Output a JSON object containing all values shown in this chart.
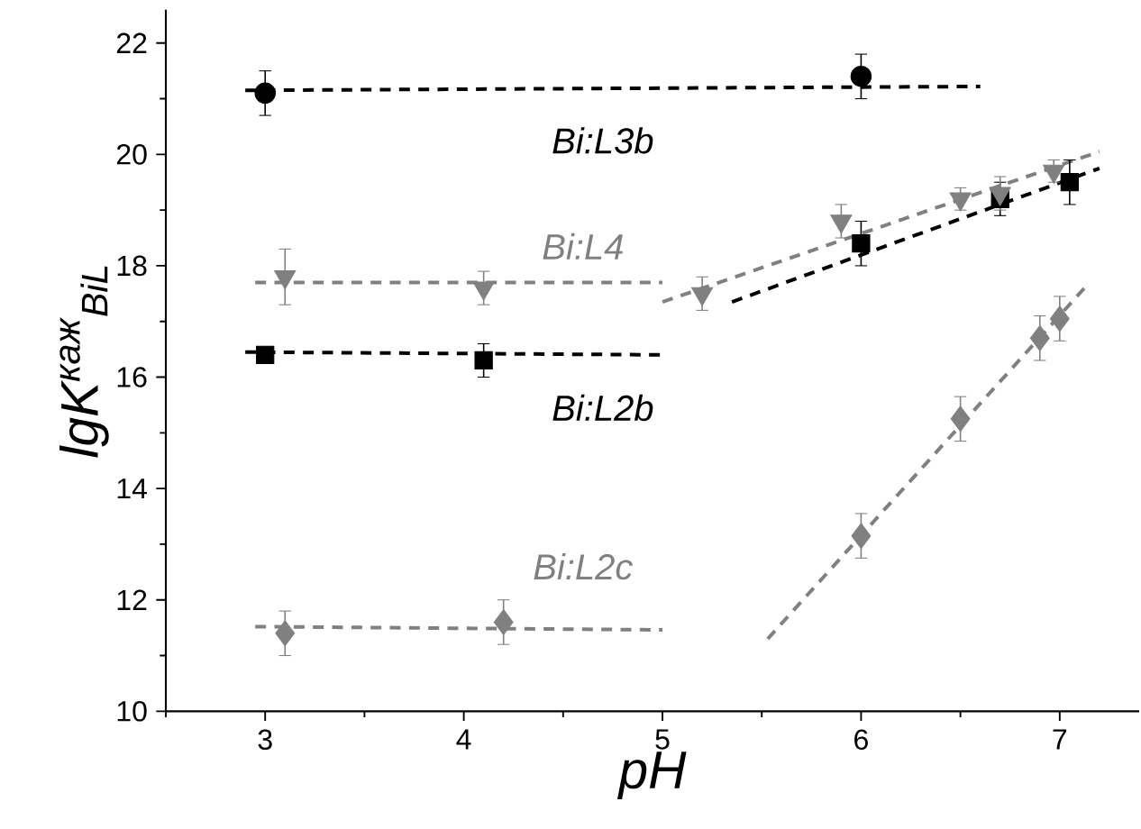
{
  "chart_data": {
    "type": "scatter",
    "xlabel": "pH",
    "ylabel": "lgK$^{каж}$$_{BiL}$",
    "xlim": [
      2.5,
      7.4
    ],
    "ylim": [
      10,
      22.6
    ],
    "xticks": [
      {
        "value": 2.5,
        "label": null
      },
      3,
      {
        "value": 3.5,
        "label": null
      },
      4,
      {
        "value": 4.5,
        "label": null
      },
      5,
      {
        "value": 5.5,
        "label": null
      },
      6,
      {
        "value": 6.5,
        "label": null
      },
      7
    ],
    "yticks": [
      10,
      {
        "value": 11,
        "label": null
      },
      12,
      {
        "value": 13,
        "label": null
      },
      14,
      {
        "value": 15,
        "label": null
      },
      16,
      {
        "value": 17,
        "label": null
      },
      18,
      {
        "value": 19,
        "label": null
      },
      20,
      {
        "value": 21,
        "label": null
      },
      22
    ],
    "series": [
      {
        "marker": "circle",
        "color": "#000000",
        "x": [
          3,
          6
        ],
        "values": [
          21.1,
          21.4
        ],
        "errors": [
          0.4,
          0.4
        ]
      },
      {
        "marker": "triangle",
        "color": "#808080",
        "x": [
          3.1,
          4.1,
          5.2,
          5.9,
          6.5,
          6.7,
          6.97
        ],
        "values": [
          17.8,
          17.6,
          17.5,
          18.8,
          19.2,
          19.3,
          19.7
        ],
        "errors": [
          0.5,
          0.3,
          0.3,
          0.3,
          0.2,
          0.3,
          0.2
        ]
      },
      {
        "marker": "square",
        "color": "#000000",
        "x": [
          3,
          4.1,
          6,
          6.7,
          7.05
        ],
        "values": [
          16.4,
          16.3,
          18.4,
          19.2,
          19.5
        ],
        "errors": [
          0.1,
          0.3,
          0.4,
          0.3,
          0.4
        ]
      },
      {
        "marker": "diamond",
        "color": "#808080",
        "x": [
          3.1,
          4.2,
          6,
          6.5,
          6.9,
          7.0
        ],
        "values": [
          11.4,
          11.6,
          13.15,
          15.25,
          16.7,
          17.05
        ],
        "errors": [
          0.4,
          0.4,
          0.4,
          0.4,
          0.4,
          0.4
        ]
      },
      {
        "type": "line",
        "line_style": "dashed",
        "color": "#000000",
        "x": [
          2.9,
          6.6
        ],
        "values": [
          21.15,
          21.22
        ]
      },
      {
        "type": "line",
        "line_style": "dashed",
        "color": "#808080",
        "x": [
          2.95,
          5.0
        ],
        "values": [
          17.7,
          17.7
        ]
      },
      {
        "type": "line",
        "line_style": "dashed",
        "color": "#808080",
        "x": [
          5.0,
          7.2
        ],
        "values": [
          17.35,
          20.05
        ]
      },
      {
        "type": "line",
        "line_style": "dashed",
        "color": "#000000",
        "x": [
          2.9,
          5.0
        ],
        "values": [
          16.45,
          16.4
        ]
      },
      {
        "type": "line",
        "line_style": "dashed",
        "color": "#000000",
        "x": [
          5.35,
          7.2
        ],
        "values": [
          17.35,
          19.75
        ]
      },
      {
        "type": "line",
        "line_style": "dashed",
        "color": "#808080",
        "x": [
          2.95,
          5.0
        ],
        "values": [
          11.52,
          11.46
        ]
      },
      {
        "type": "line",
        "line_style": "dashed",
        "color": "#808080",
        "x": [
          5.53,
          7.15
        ],
        "values": [
          11.3,
          17.7
        ]
      }
    ],
    "annotations": [
      "Bi:L3b",
      "Bi:L4",
      "Bi:L2b",
      "Bi:L2c"
    ]
  }
}
